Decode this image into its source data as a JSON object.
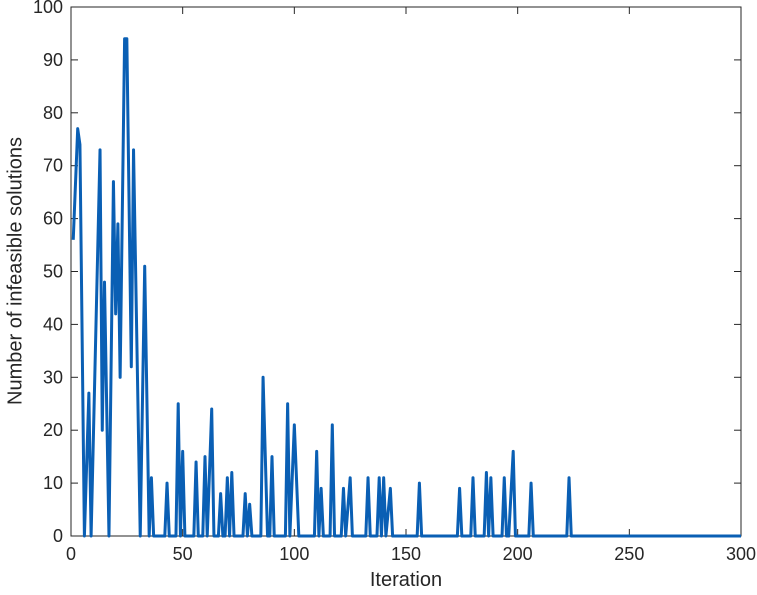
{
  "chart_data": {
    "type": "line",
    "xlabel": "Iteration",
    "ylabel": "Number of infeasible solutions",
    "color": "#0a5fb4",
    "xlim": [
      0,
      300
    ],
    "ylim": [
      0,
      100
    ],
    "xticks": [
      0,
      50,
      100,
      150,
      200,
      250,
      300
    ],
    "yticks": [
      0,
      10,
      20,
      30,
      40,
      50,
      60,
      70,
      80,
      90,
      100
    ],
    "x": [
      1,
      3,
      4,
      6,
      8,
      9,
      13,
      14,
      15,
      17,
      19,
      20,
      21,
      22,
      24,
      25,
      27,
      28,
      31,
      33,
      35,
      36,
      37,
      42,
      43,
      44,
      47,
      48,
      49,
      50,
      51,
      55,
      56,
      57,
      59,
      60,
      61,
      63,
      64,
      66,
      67,
      68,
      69,
      70,
      71,
      72,
      73,
      77,
      78,
      79,
      80,
      81,
      85,
      86,
      88,
      89,
      90,
      91,
      96,
      97,
      98,
      100,
      102,
      109,
      110,
      111,
      112,
      113,
      116,
      117,
      118,
      121,
      122,
      123,
      125,
      126,
      132,
      133,
      134,
      137,
      138,
      139,
      140,
      141,
      143,
      144,
      155,
      156,
      157,
      173,
      174,
      175,
      179,
      180,
      181,
      185,
      186,
      187,
      188,
      189,
      193,
      194,
      195,
      196,
      198,
      199,
      205,
      206,
      207,
      222,
      223,
      224,
      300
    ],
    "values": [
      56,
      77,
      74,
      0,
      27,
      0,
      73,
      20,
      48,
      0,
      67,
      42,
      59,
      30,
      94,
      94,
      32,
      73,
      0,
      51,
      0,
      11,
      0,
      0,
      10,
      0,
      0,
      25,
      0,
      16,
      0,
      0,
      14,
      0,
      0,
      15,
      0,
      24,
      0,
      0,
      8,
      0,
      0,
      11,
      0,
      12,
      0,
      0,
      8,
      0,
      6,
      0,
      0,
      30,
      0,
      0,
      15,
      0,
      0,
      25,
      0,
      21,
      0,
      0,
      16,
      0,
      9,
      0,
      0,
      21,
      0,
      0,
      9,
      0,
      11,
      0,
      0,
      11,
      0,
      0,
      11,
      0,
      11,
      0,
      9,
      0,
      0,
      10,
      0,
      0,
      9,
      0,
      0,
      11,
      0,
      0,
      12,
      0,
      11,
      0,
      0,
      11,
      0,
      0,
      16,
      0,
      0,
      10,
      0,
      0,
      11,
      0,
      0
    ]
  }
}
